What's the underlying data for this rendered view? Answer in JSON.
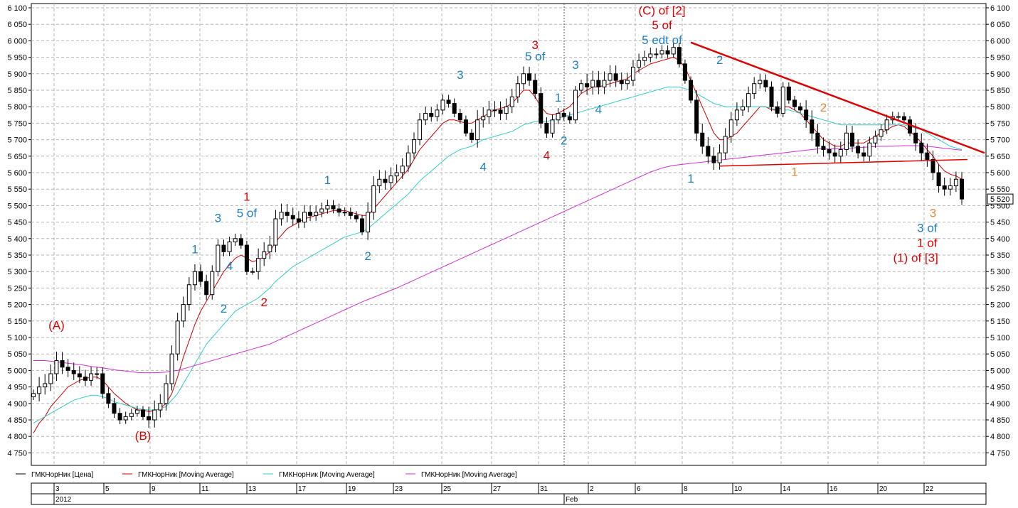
{
  "chart_data": {
    "type": "candlestick",
    "title": "",
    "xlabel": "",
    "ylabel": "",
    "ylim": [
      4700,
      6100
    ],
    "y_ticks": [
      "6 100",
      "6 050",
      "6 000",
      "5 950",
      "5 900",
      "5 850",
      "5 800",
      "5 750",
      "5 700",
      "5 650",
      "5 600",
      "5 550",
      "5 500",
      "5 450",
      "5 400",
      "5 350",
      "5 300",
      "5 250",
      "5 200",
      "5 150",
      "5 100",
      "5 050",
      "5 000",
      "4 950",
      "4 900",
      "4 850",
      "4 800",
      "4 750"
    ],
    "last_price_label": "5 520",
    "last_price": 5520,
    "grid": true,
    "x_tick_labels": [
      "3",
      "5",
      "9",
      "11",
      "13",
      "17",
      "19",
      "23",
      "25",
      "27",
      "31",
      "2",
      "6",
      "8",
      "10",
      "14",
      "16",
      "20",
      "22"
    ],
    "period_labels": [
      "2012",
      "Feb"
    ],
    "series": [
      {
        "name": "ГМКНорНик [Цена]",
        "color": "#000000",
        "style": "candles",
        "values": [
          4930,
          4950,
          4960,
          4990,
          5030,
          5010,
          5000,
          4990,
          4980,
          4970,
          4990,
          4990,
          4930,
          4900,
          4870,
          4850,
          4860,
          4870,
          4880,
          4860,
          4850,
          4880,
          4900,
          4960,
          5050,
          5150,
          5200,
          5260,
          5300,
          5270,
          5230,
          5300,
          5380,
          5360,
          5390,
          5400,
          5380,
          5300,
          5300,
          5340,
          5360,
          5380,
          5460,
          5480,
          5470,
          5460,
          5450,
          5480,
          5470,
          5480,
          5490,
          5500,
          5490,
          5480,
          5480,
          5470,
          5460,
          5420,
          5480,
          5560,
          5580,
          5570,
          5590,
          5600,
          5620,
          5660,
          5700,
          5760,
          5780,
          5770,
          5790,
          5820,
          5810,
          5780,
          5760,
          5720,
          5700,
          5760,
          5770,
          5790,
          5790,
          5780,
          5800,
          5830,
          5870,
          5900,
          5880,
          5840,
          5750,
          5720,
          5760,
          5780,
          5770,
          5760,
          5850,
          5870,
          5860,
          5880,
          5860,
          5880,
          5900,
          5880,
          5870,
          5880,
          5920,
          5940,
          5950,
          5960,
          5960,
          5970,
          5960,
          5980,
          5930,
          5880,
          5820,
          5720,
          5680,
          5650,
          5630,
          5660,
          5710,
          5760,
          5790,
          5800,
          5840,
          5870,
          5880,
          5860,
          5800,
          5780,
          5860,
          5820,
          5800,
          5790,
          5760,
          5720,
          5680,
          5670,
          5660,
          5650,
          5670,
          5720,
          5680,
          5660,
          5650,
          5690,
          5710,
          5730,
          5760,
          5770,
          5770,
          5760,
          5720,
          5690,
          5660,
          5640,
          5600,
          5560,
          5550,
          5560,
          5580,
          5520
        ]
      },
      {
        "name": "ГМКНорНик [Moving Average]",
        "color": "#cc0000",
        "style": "line",
        "values": [
          4810,
          4840,
          4860,
          4890,
          4910,
          4930,
          4950,
          4960,
          4970,
          4975,
          4980,
          4980,
          4970,
          4950,
          4930,
          4915,
          4900,
          4890,
          4880,
          4880,
          4875,
          4878,
          4885,
          4900,
          4930,
          4980,
          5040,
          5090,
          5140,
          5180,
          5210,
          5240,
          5270,
          5300,
          5320,
          5340,
          5350,
          5340,
          5330,
          5335,
          5345,
          5360,
          5390,
          5410,
          5430,
          5440,
          5450,
          5460,
          5465,
          5470,
          5475,
          5480,
          5485,
          5485,
          5485,
          5480,
          5475,
          5470,
          5470,
          5490,
          5510,
          5530,
          5550,
          5570,
          5590,
          5610,
          5640,
          5670,
          5690,
          5710,
          5730,
          5750,
          5760,
          5760,
          5755,
          5750,
          5750,
          5760,
          5770,
          5780,
          5790,
          5795,
          5800,
          5810,
          5830,
          5850,
          5850,
          5830,
          5800,
          5780,
          5775,
          5780,
          5790,
          5800,
          5820,
          5840,
          5850,
          5860,
          5860,
          5865,
          5870,
          5875,
          5880,
          5885,
          5900,
          5910,
          5920,
          5930,
          5935,
          5940,
          5945,
          5950,
          5940,
          5920,
          5880,
          5840,
          5800,
          5760,
          5720,
          5700,
          5700,
          5710,
          5720,
          5740,
          5760,
          5780,
          5800,
          5800,
          5790,
          5790,
          5800,
          5800,
          5790,
          5780,
          5760,
          5740,
          5720,
          5700,
          5690,
          5680,
          5680,
          5690,
          5690,
          5690,
          5690,
          5700,
          5710,
          5720,
          5730,
          5740,
          5745,
          5740,
          5725,
          5710,
          5690,
          5670,
          5650,
          5625,
          5605,
          5595,
          5590,
          5580
        ]
      },
      {
        "name": "ГМКНорНик [Moving Average]",
        "color": "#33cccc",
        "style": "line",
        "values": [
          4840,
          4850,
          4860,
          4870,
          4880,
          4890,
          4900,
          4910,
          4915,
          4920,
          4925,
          4925,
          4920,
          4915,
          4905,
          4900,
          4895,
          4890,
          4885,
          4882,
          4880,
          4880,
          4885,
          4890,
          4910,
          4930,
          4960,
          4990,
          5020,
          5050,
          5080,
          5100,
          5120,
          5140,
          5160,
          5180,
          5190,
          5200,
          5210,
          5220,
          5235,
          5250,
          5270,
          5285,
          5300,
          5315,
          5325,
          5335,
          5345,
          5355,
          5365,
          5375,
          5385,
          5395,
          5405,
          5410,
          5415,
          5420,
          5430,
          5445,
          5460,
          5475,
          5490,
          5505,
          5520,
          5535,
          5555,
          5575,
          5590,
          5605,
          5620,
          5635,
          5650,
          5660,
          5670,
          5675,
          5680,
          5690,
          5700,
          5705,
          5710,
          5715,
          5720,
          5725,
          5735,
          5745,
          5750,
          5755,
          5755,
          5755,
          5760,
          5765,
          5770,
          5775,
          5780,
          5785,
          5790,
          5795,
          5800,
          5805,
          5810,
          5815,
          5820,
          5825,
          5830,
          5835,
          5840,
          5845,
          5850,
          5855,
          5860,
          5860,
          5860,
          5855,
          5850,
          5840,
          5830,
          5820,
          5810,
          5805,
          5800,
          5800,
          5800,
          5800,
          5800,
          5800,
          5800,
          5800,
          5795,
          5790,
          5790,
          5790,
          5785,
          5780,
          5775,
          5770,
          5765,
          5760,
          5755,
          5750,
          5745,
          5745,
          5745,
          5745,
          5745,
          5745,
          5745,
          5745,
          5745,
          5745,
          5745,
          5745,
          5740,
          5735,
          5730,
          5720,
          5710,
          5700,
          5690,
          5680,
          5675,
          5670
        ]
      },
      {
        "name": "ГМКНорНик [Moving Average]",
        "color": "#cc33cc",
        "style": "line",
        "values": [
          5030,
          5030,
          5030,
          5028,
          5026,
          5024,
          5022,
          5020,
          5018,
          5015,
          5012,
          5010,
          5008,
          5005,
          5002,
          5000,
          4998,
          4996,
          4994,
          4993,
          4993,
          4993,
          4994,
          4995,
          4998,
          5000,
          5005,
          5010,
          5015,
          5020,
          5025,
          5030,
          5035,
          5040,
          5045,
          5050,
          5055,
          5060,
          5065,
          5070,
          5075,
          5080,
          5088,
          5096,
          5104,
          5112,
          5120,
          5128,
          5136,
          5144,
          5152,
          5160,
          5168,
          5176,
          5184,
          5192,
          5200,
          5208,
          5215,
          5222,
          5229,
          5236,
          5243,
          5250,
          5258,
          5266,
          5274,
          5282,
          5290,
          5298,
          5306,
          5314,
          5322,
          5330,
          5338,
          5346,
          5354,
          5362,
          5370,
          5378,
          5386,
          5394,
          5402,
          5410,
          5418,
          5426,
          5434,
          5442,
          5450,
          5458,
          5466,
          5474,
          5482,
          5490,
          5498,
          5506,
          5514,
          5522,
          5530,
          5538,
          5546,
          5554,
          5562,
          5570,
          5578,
          5586,
          5594,
          5602,
          5608,
          5614,
          5618,
          5622,
          5624,
          5626,
          5628,
          5630,
          5632,
          5634,
          5636,
          5638,
          5640,
          5642,
          5644,
          5646,
          5648,
          5650,
          5652,
          5654,
          5656,
          5658,
          5660,
          5662,
          5664,
          5666,
          5668,
          5670,
          5672,
          5672,
          5672,
          5672,
          5673,
          5674,
          5675,
          5676,
          5677,
          5678,
          5679,
          5680,
          5680,
          5680,
          5681,
          5682,
          5682,
          5682,
          5681,
          5680,
          5678,
          5676,
          5674,
          5672,
          5670,
          5668
        ]
      }
    ],
    "trendlines": [
      {
        "color": "#dd0000",
        "from_index": 114,
        "from_value": 5995,
        "to_index": 165,
        "to_value": 5690
      },
      {
        "color": "#dd0000",
        "from_index": 119,
        "from_value": 5620,
        "to_index": 162,
        "to_value": 5640
      }
    ],
    "annotations": [
      {
        "text": "(A)",
        "color": "#dd0000",
        "x_index": 4,
        "y": 5125
      },
      {
        "text": "(B)",
        "color": "#dd0000",
        "x_index": 19,
        "y": 4790
      },
      {
        "text": "1",
        "color": "#1f7fbf",
        "x_index": 28,
        "y": 5355
      },
      {
        "text": "2",
        "color": "#1f7fbf",
        "x_index": 33,
        "y": 5175
      },
      {
        "text": "3",
        "color": "#1f7fbf",
        "x_index": 32,
        "y": 5450
      },
      {
        "text": "4",
        "color": "#1f7fbf",
        "x_index": 34,
        "y": 5305
      },
      {
        "text": "5 of",
        "color": "#1f7fbf",
        "x_index": 37,
        "y": 5465
      },
      {
        "text": "1",
        "color": "#dd0000",
        "x_index": 37,
        "y": 5515
      },
      {
        "text": "2",
        "color": "#dd0000",
        "x_index": 40,
        "y": 5195
      },
      {
        "text": "1",
        "color": "#1f7fbf",
        "x_index": 51,
        "y": 5565
      },
      {
        "text": "2",
        "color": "#1f7fbf",
        "x_index": 58,
        "y": 5335
      },
      {
        "text": "3",
        "color": "#1f7fbf",
        "x_index": 74,
        "y": 5885
      },
      {
        "text": "4",
        "color": "#1f7fbf",
        "x_index": 78,
        "y": 5605
      },
      {
        "text": "3",
        "color": "#dd0000",
        "x_index": 87,
        "y": 5975
      },
      {
        "text": "5 of",
        "color": "#1f7fbf",
        "x_index": 87,
        "y": 5940
      },
      {
        "text": "1",
        "color": "#1f7fbf",
        "x_index": 91,
        "y": 5815
      },
      {
        "text": "4",
        "color": "#dd0000",
        "x_index": 89,
        "y": 5640
      },
      {
        "text": "2",
        "color": "#1f7fbf",
        "x_index": 92,
        "y": 5685
      },
      {
        "text": "3",
        "color": "#1f7fbf",
        "x_index": 94,
        "y": 5915
      },
      {
        "text": "4",
        "color": "#1f7fbf",
        "x_index": 98,
        "y": 5780
      },
      {
        "text": "(C) of [2]",
        "color": "#dd0000",
        "x_index": 109,
        "y": 6080
      },
      {
        "text": "5 of",
        "color": "#dd0000",
        "x_index": 109,
        "y": 6035
      },
      {
        "text": "5 edt of",
        "color": "#1f7fbf",
        "x_index": 109,
        "y": 5990
      },
      {
        "text": "2",
        "color": "#1f7fbf",
        "x_index": 119,
        "y": 5930
      },
      {
        "text": "1",
        "color": "#1f7fbf",
        "x_index": 114,
        "y": 5570
      },
      {
        "text": "2",
        "color": "#e08a3c",
        "x_index": 137,
        "y": 5785
      },
      {
        "text": "1",
        "color": "#e08a3c",
        "x_index": 132,
        "y": 5590
      },
      {
        "text": "3",
        "color": "#e08a3c",
        "x_index": 156,
        "y": 5465
      },
      {
        "text": "3 of",
        "color": "#1f7fbf",
        "x_index": 155,
        "y": 5420
      },
      {
        "text": "1 of",
        "color": "#dd0000",
        "x_index": 155,
        "y": 5375
      },
      {
        "text": "(1) of [3]",
        "color": "#dd0000",
        "x_index": 153,
        "y": 5330
      }
    ]
  }
}
